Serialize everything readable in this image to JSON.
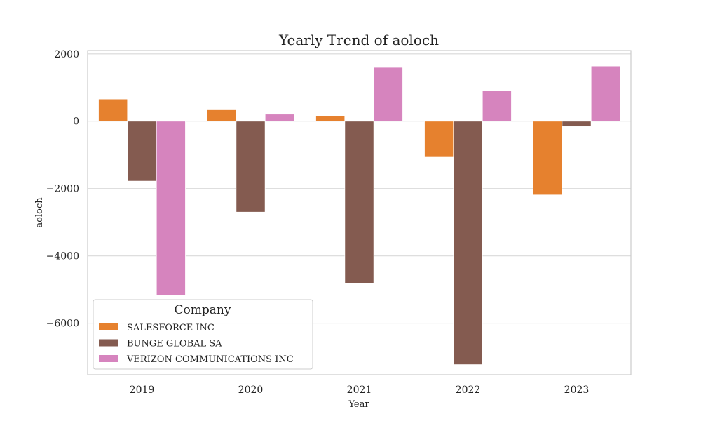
{
  "chart_data": {
    "type": "bar",
    "title": "Yearly Trend of aoloch",
    "xlabel": "Year",
    "ylabel": "aoloch",
    "categories": [
      "2019",
      "2020",
      "2021",
      "2022",
      "2023"
    ],
    "series": [
      {
        "name": "SALESFORCE INC",
        "color": "#e6812e",
        "values": [
          660,
          340,
          160,
          -1070,
          -2190
        ]
      },
      {
        "name": "BUNGE GLOBAL SA",
        "color": "#845b50",
        "values": [
          -1780,
          -2700,
          -4810,
          -7230,
          -160
        ]
      },
      {
        "name": "VERIZON COMMUNICATIONS INC",
        "color": "#d684be",
        "values": [
          -5170,
          210,
          1600,
          900,
          1640
        ]
      }
    ],
    "ylim": [
      -7530,
      2100
    ],
    "yticks": [
      2000,
      0,
      -2000,
      -4000,
      -6000
    ],
    "grid": true,
    "legend": {
      "title": "Company",
      "position": "lower-left"
    }
  }
}
